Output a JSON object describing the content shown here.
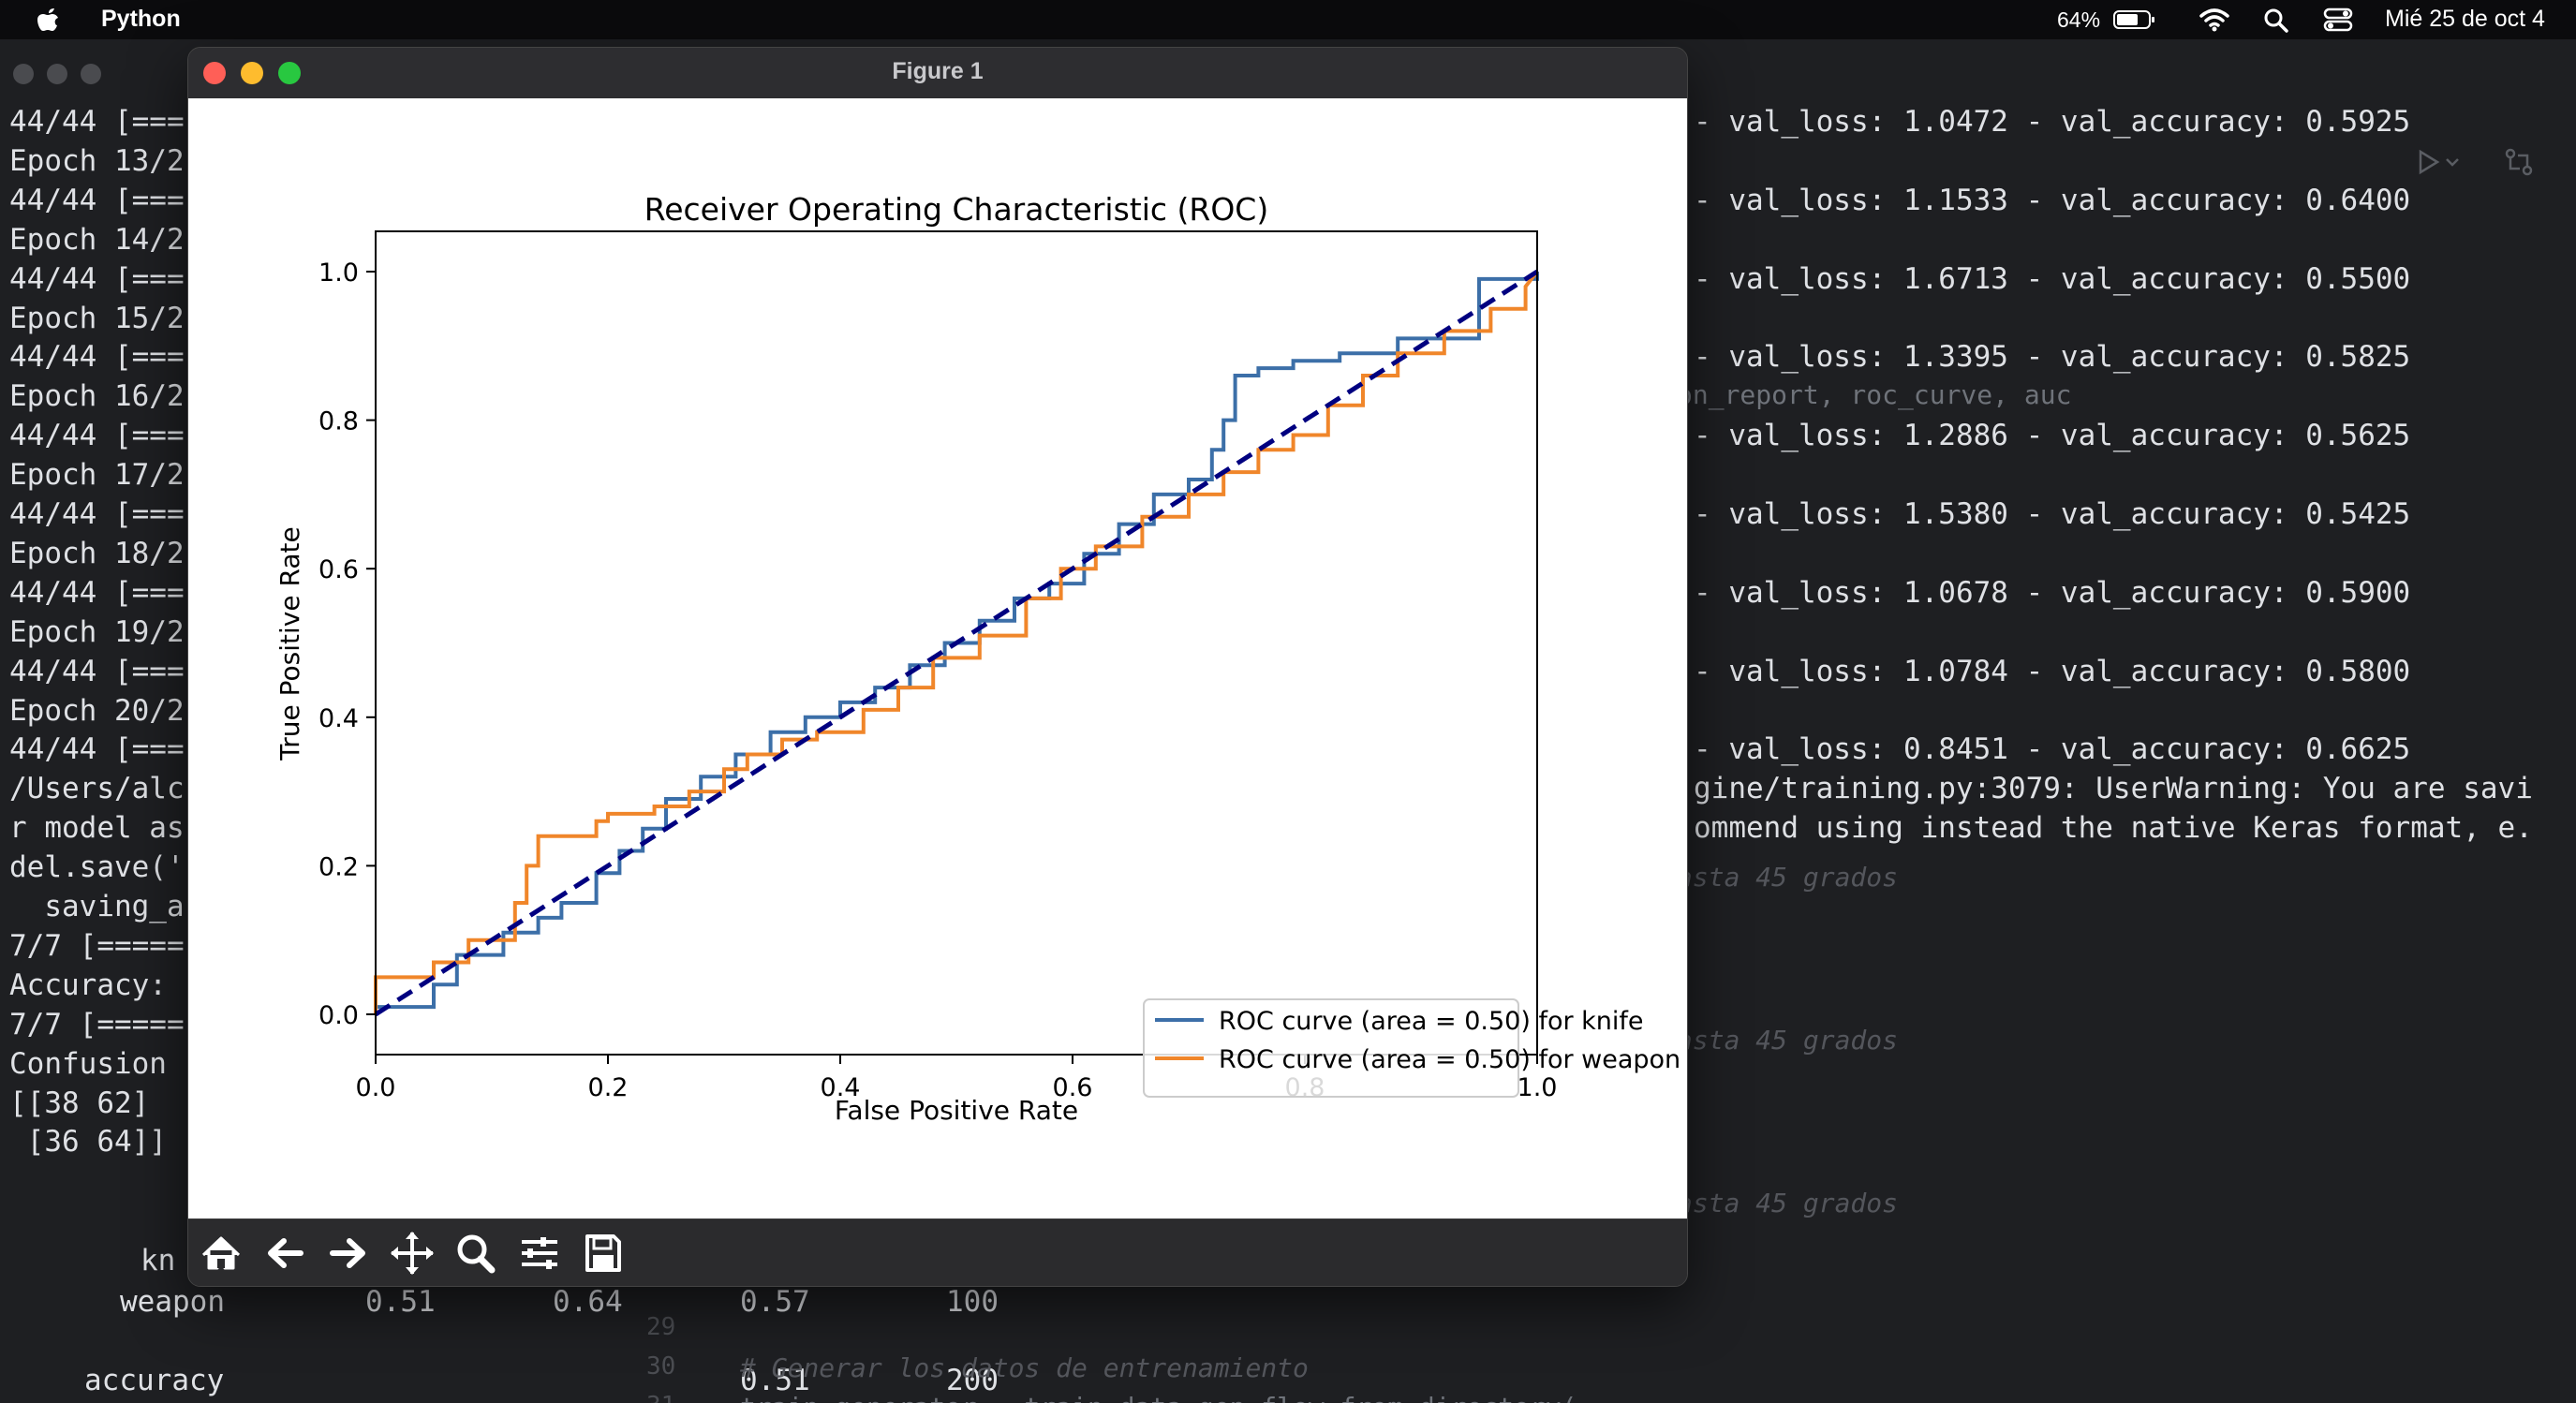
{
  "menubar": {
    "app_name": "Python",
    "battery_percent": "64%",
    "clock": "Mié 25 de oct 4"
  },
  "terminal": {
    "left_lines": [
      "44/44 [===",
      "Epoch 13/2",
      "44/44 [===",
      "Epoch 14/2",
      "44/44 [===",
      "Epoch 15/2",
      "44/44 [===",
      "Epoch 16/2",
      "44/44 [===",
      "Epoch 17/2",
      "44/44 [===",
      "Epoch 18/2",
      "44/44 [===",
      "Epoch 19/2",
      "44/44 [===",
      "Epoch 20/2",
      "44/44 [===",
      "/Users/alc",
      "r model as",
      "del.save('",
      "  saving_a",
      "7/7 [=====",
      "Accuracy:",
      "7/7 [=====",
      "Confusion",
      "[[38 62]",
      " [36 64]]"
    ],
    "right_lines": [
      "- val_loss: 1.0472 - val_accuracy: 0.5925",
      "- val_loss: 1.1533 - val_accuracy: 0.6400",
      "- val_loss: 1.6713 - val_accuracy: 0.5500",
      "- val_loss: 1.3395 - val_accuracy: 0.5825",
      "- val_loss: 1.2886 - val_accuracy: 0.5625",
      "- val_loss: 1.5380 - val_accuracy: 0.5425",
      "- val_loss: 1.0678 - val_accuracy: 0.5900",
      "- val_loss: 1.0784 - val_accuracy: 0.5800",
      "- val_loss: 0.8451 - val_accuracy: 0.6625",
      "gine/training.py:3079: UserWarning: You are savi",
      "ommend using instead the native Keras format, e."
    ],
    "ghost_import": "on_report, roc_curve, auc",
    "ghost_comments": [
      "asta 45 grados",
      "asta 45 grados",
      "asta 45 grados"
    ],
    "report": {
      "knife_label": "kn",
      "weapon_row": [
        "weapon",
        "0.51",
        "0.64",
        "0.57",
        "100"
      ],
      "accuracy_row": [
        "accuracy",
        "0.51",
        "200"
      ]
    },
    "ghost_code": {
      "line_numbers": [
        "29",
        "30",
        "31"
      ],
      "comment": "# Generar los datos de entrenamiento",
      "code": "train_generator = train_data_gen.flow_from_directory("
    }
  },
  "figure": {
    "window_title": "Figure 1",
    "colors": {
      "knife": "#3c6fa8",
      "weapon": "#f0862a",
      "diagonal": "#000080"
    },
    "toolbar": [
      "home-icon",
      "back-icon",
      "forward-icon",
      "pan-icon",
      "zoom-icon",
      "configure-icon",
      "save-icon"
    ]
  },
  "chart_data": {
    "type": "line",
    "title": "Receiver Operating Characteristic (ROC)",
    "xlabel": "False Positive Rate",
    "ylabel": "True Positive Rate",
    "xlim": [
      0,
      1
    ],
    "ylim": [
      0,
      1
    ],
    "xticks": [
      "0.0",
      "0.2",
      "0.4",
      "0.6",
      "0.8",
      "1.0"
    ],
    "yticks": [
      "0.0",
      "0.2",
      "0.4",
      "0.6",
      "0.8",
      "1.0"
    ],
    "legend_position": "lower-right",
    "series": [
      {
        "name": "ROC curve (area = 0.50) for knife",
        "color": "#3c6fa8",
        "x": [
          0,
          0,
          0.05,
          0.05,
          0.07,
          0.07,
          0.11,
          0.11,
          0.14,
          0.14,
          0.16,
          0.16,
          0.19,
          0.19,
          0.21,
          0.21,
          0.23,
          0.23,
          0.25,
          0.25,
          0.28,
          0.28,
          0.31,
          0.31,
          0.34,
          0.34,
          0.37,
          0.37,
          0.4,
          0.4,
          0.43,
          0.43,
          0.46,
          0.46,
          0.49,
          0.49,
          0.52,
          0.52,
          0.55,
          0.55,
          0.58,
          0.58,
          0.61,
          0.61,
          0.64,
          0.64,
          0.67,
          0.67,
          0.7,
          0.7,
          0.72,
          0.72,
          0.73,
          0.73,
          0.74,
          0.74,
          0.76,
          0.76,
          0.79,
          0.79,
          0.83,
          0.83,
          0.88,
          0.88,
          0.95,
          0.95,
          1.0,
          1.0
        ],
        "y": [
          0,
          0.01,
          0.01,
          0.04,
          0.04,
          0.08,
          0.08,
          0.11,
          0.11,
          0.13,
          0.13,
          0.15,
          0.15,
          0.19,
          0.19,
          0.22,
          0.22,
          0.25,
          0.25,
          0.29,
          0.29,
          0.32,
          0.32,
          0.35,
          0.35,
          0.38,
          0.38,
          0.4,
          0.4,
          0.42,
          0.42,
          0.44,
          0.44,
          0.47,
          0.47,
          0.5,
          0.5,
          0.53,
          0.53,
          0.56,
          0.56,
          0.58,
          0.58,
          0.62,
          0.62,
          0.66,
          0.66,
          0.7,
          0.7,
          0.72,
          0.72,
          0.76,
          0.76,
          0.8,
          0.8,
          0.86,
          0.86,
          0.87,
          0.87,
          0.88,
          0.88,
          0.89,
          0.89,
          0.91,
          0.91,
          0.99,
          0.99,
          1.0
        ]
      },
      {
        "name": "ROC curve (area = 0.50) for weapon",
        "color": "#f0862a",
        "x": [
          0,
          0,
          0.05,
          0.05,
          0.08,
          0.08,
          0.12,
          0.12,
          0.13,
          0.13,
          0.14,
          0.14,
          0.19,
          0.19,
          0.2,
          0.2,
          0.24,
          0.24,
          0.27,
          0.27,
          0.3,
          0.3,
          0.32,
          0.32,
          0.35,
          0.35,
          0.38,
          0.38,
          0.42,
          0.42,
          0.45,
          0.45,
          0.48,
          0.48,
          0.52,
          0.52,
          0.56,
          0.56,
          0.59,
          0.59,
          0.62,
          0.62,
          0.66,
          0.66,
          0.7,
          0.7,
          0.73,
          0.73,
          0.76,
          0.76,
          0.79,
          0.79,
          0.82,
          0.82,
          0.85,
          0.85,
          0.88,
          0.88,
          0.92,
          0.92,
          0.96,
          0.96,
          0.99,
          0.99,
          1.0
        ],
        "y": [
          0,
          0.05,
          0.05,
          0.07,
          0.07,
          0.1,
          0.1,
          0.15,
          0.15,
          0.2,
          0.2,
          0.24,
          0.24,
          0.26,
          0.26,
          0.27,
          0.27,
          0.28,
          0.28,
          0.3,
          0.3,
          0.33,
          0.33,
          0.35,
          0.35,
          0.37,
          0.37,
          0.38,
          0.38,
          0.41,
          0.41,
          0.44,
          0.44,
          0.48,
          0.48,
          0.51,
          0.51,
          0.56,
          0.56,
          0.6,
          0.6,
          0.63,
          0.63,
          0.67,
          0.67,
          0.7,
          0.7,
          0.73,
          0.73,
          0.76,
          0.76,
          0.78,
          0.78,
          0.82,
          0.82,
          0.86,
          0.86,
          0.89,
          0.89,
          0.92,
          0.92,
          0.95,
          0.95,
          0.98,
          1.0
        ]
      },
      {
        "name": "",
        "color": "#000080",
        "dashed": true,
        "x": [
          0,
          1
        ],
        "y": [
          0,
          1
        ]
      }
    ]
  }
}
